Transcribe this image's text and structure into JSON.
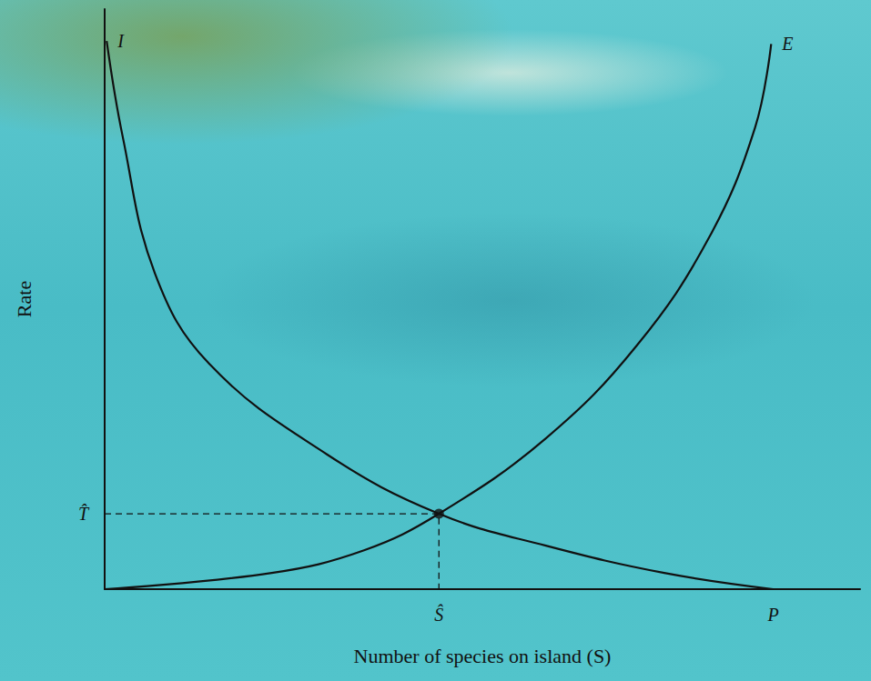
{
  "chart_data": {
    "type": "line",
    "x_label": "Number of species on island (S)",
    "y_label": "Rate",
    "xlim": [
      0,
      113
    ],
    "ylim": [
      0,
      100
    ],
    "xticks": [
      {
        "value": 50,
        "label": "Ŝ"
      },
      {
        "value": 100,
        "label": "P"
      }
    ],
    "yticks": [
      {
        "value": 13,
        "label": "T̂"
      }
    ],
    "grid": false,
    "series": [
      {
        "name": "I",
        "color": "#111111",
        "x": [
          0.3,
          2.7,
          7.5,
          15.6,
          33.3,
          50,
          66,
          83.7,
          100
        ],
        "values": [
          94.5,
          78,
          54.5,
          38.9,
          23.2,
          13,
          7.5,
          2.8,
          0
        ]
      },
      {
        "name": "E",
        "color": "#111111",
        "x": [
          0,
          25,
          38.8,
          50,
          66,
          79.6,
          90.5,
          97.3,
          99.7
        ],
        "values": [
          0,
          2.8,
          6.7,
          13,
          26,
          42,
          60.8,
          79.6,
          94
        ]
      }
    ],
    "equilibrium": {
      "x": 50,
      "y": 13
    }
  }
}
